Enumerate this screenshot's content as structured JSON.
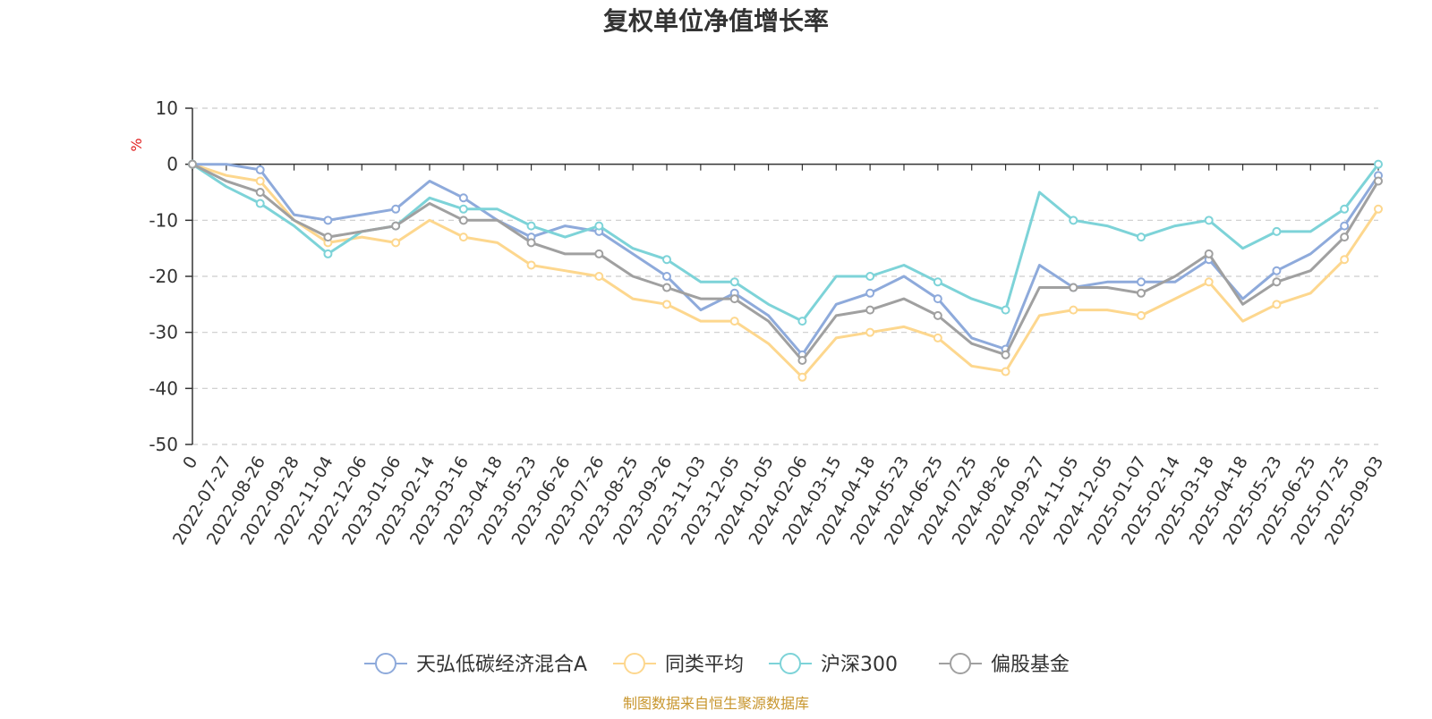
{
  "chart_data": {
    "type": "line",
    "title": "复权单位净值增长率",
    "ylabel": "%",
    "ylim": [
      -50,
      10
    ],
    "y_ticks": [
      10,
      0,
      -10,
      -20,
      -30,
      -40,
      -50
    ],
    "grid": true,
    "legend_position": "bottom",
    "x": [
      "0",
      "2022-07-27",
      "2022-08-26",
      "2022-09-28",
      "2022-11-04",
      "2022-12-06",
      "2023-01-06",
      "2023-02-14",
      "2023-03-16",
      "2023-04-18",
      "2023-05-23",
      "2023-06-26",
      "2023-07-26",
      "2023-08-25",
      "2023-09-26",
      "2023-11-03",
      "2023-12-05",
      "2024-01-05",
      "2024-02-06",
      "2024-03-15",
      "2024-04-18",
      "2024-05-23",
      "2024-06-25",
      "2024-07-25",
      "2024-08-26",
      "2024-09-27",
      "2024-11-05",
      "2024-12-05",
      "2025-01-07",
      "2025-02-14",
      "2025-03-18",
      "2025-04-18",
      "2025-05-23",
      "2025-06-25",
      "2025-07-25",
      "2025-09-03"
    ],
    "series": [
      {
        "name": "天弘低碳经济混合A",
        "color": "#8eaadb",
        "values": [
          0,
          0,
          -1,
          -9,
          -10,
          -9,
          -8,
          -3,
          -6,
          -10,
          -13,
          -11,
          -12,
          -16,
          -20,
          -26,
          -23,
          -27,
          -34,
          -25,
          -23,
          -20,
          -24,
          -31,
          -33,
          -18,
          -22,
          -21,
          -21,
          -21,
          -17,
          -24,
          -19,
          -16,
          -11,
          -2
        ]
      },
      {
        "name": "同类平均",
        "color": "#fdd78e",
        "values": [
          0,
          -2,
          -3,
          -10,
          -14,
          -13,
          -14,
          -10,
          -13,
          -14,
          -18,
          -19,
          -20,
          -24,
          -25,
          -28,
          -28,
          -32,
          -38,
          -31,
          -30,
          -29,
          -31,
          -36,
          -37,
          -27,
          -26,
          -26,
          -27,
          -24,
          -21,
          -28,
          -25,
          -23,
          -17,
          -8
        ]
      },
      {
        "name": "沪深300",
        "color": "#7dd3d8",
        "values": [
          0,
          -4,
          -7,
          -11,
          -16,
          -12,
          -11,
          -6,
          -8,
          -8,
          -11,
          -13,
          -11,
          -15,
          -17,
          -21,
          -21,
          -25,
          -28,
          -20,
          -20,
          -18,
          -21,
          -24,
          -26,
          -5,
          -10,
          -11,
          -13,
          -11,
          -10,
          -15,
          -12,
          -12,
          -8,
          0
        ]
      },
      {
        "name": "偏股基金",
        "color": "#a0a0a0",
        "values": [
          0,
          -3,
          -5,
          -10,
          -13,
          -12,
          -11,
          -7,
          -10,
          -10,
          -14,
          -16,
          -16,
          -20,
          -22,
          -24,
          -24,
          -28,
          -35,
          -27,
          -26,
          -24,
          -27,
          -32,
          -34,
          -22,
          -22,
          -22,
          -23,
          -20,
          -16,
          -25,
          -21,
          -19,
          -13,
          -3
        ]
      }
    ],
    "source_note": "制图数据来自恒生聚源数据库"
  }
}
